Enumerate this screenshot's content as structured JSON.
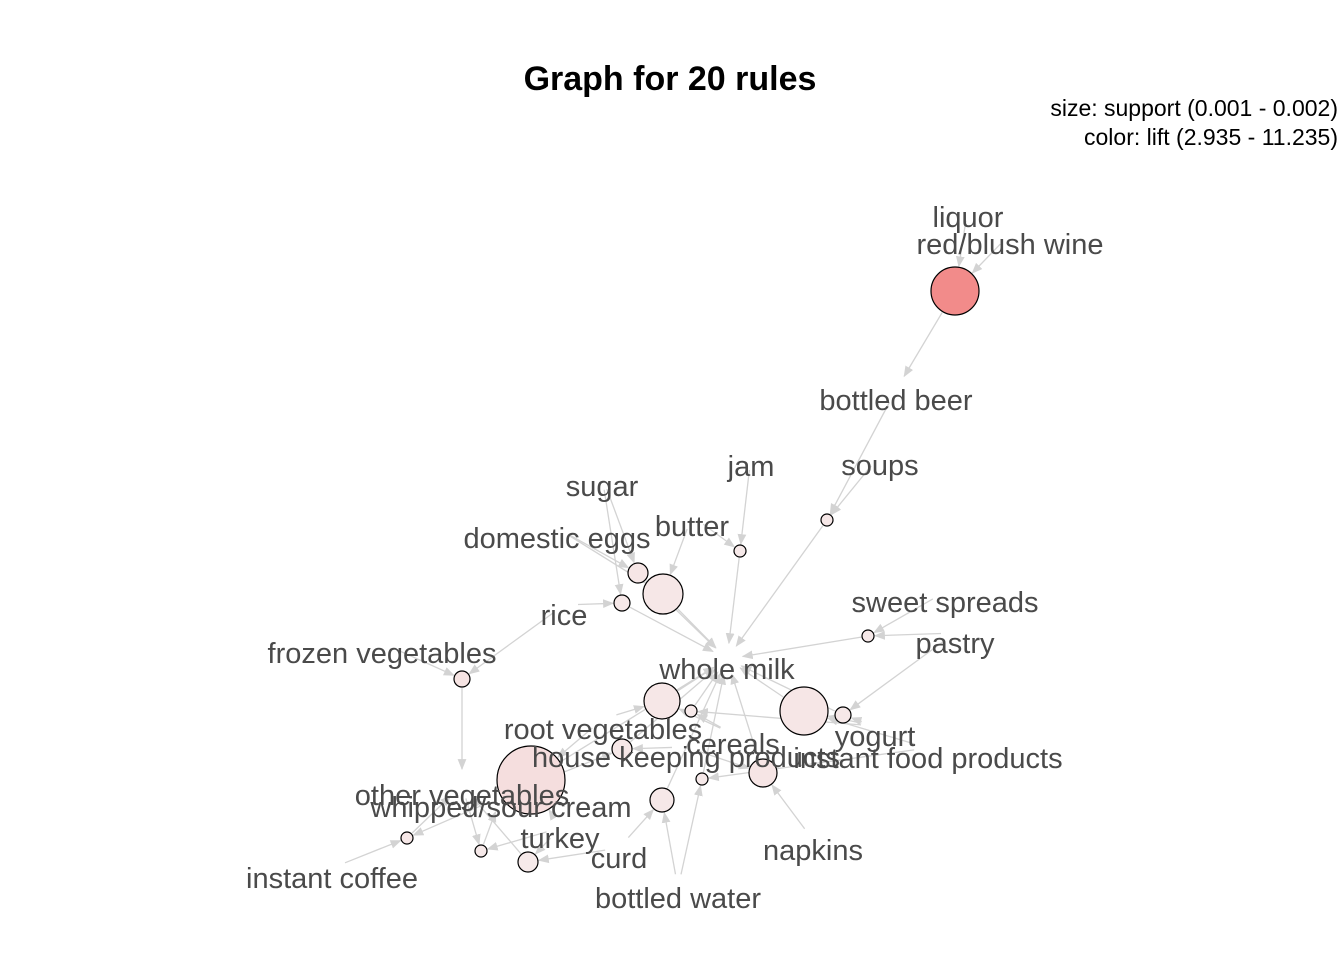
{
  "title": "Graph for 20 rules",
  "legend": {
    "size": "size: support (0.001 - 0.002)",
    "color": "color: lift (2.935 - 11.235)"
  },
  "colors": {
    "edge": "#d3d3d3",
    "high_lift": "#f28b8a",
    "low_lift": "#f6eaea",
    "label": "#4a4a4a"
  },
  "items": [
    {
      "id": "liquor",
      "label": "liquor"
    },
    {
      "id": "red_blush_wine",
      "label": "red/blush wine"
    },
    {
      "id": "bottled_beer",
      "label": "bottled beer"
    },
    {
      "id": "jam",
      "label": "jam"
    },
    {
      "id": "soups",
      "label": "soups"
    },
    {
      "id": "sugar",
      "label": "sugar"
    },
    {
      "id": "butter",
      "label": "butter"
    },
    {
      "id": "domestic_eggs",
      "label": "domestic eggs"
    },
    {
      "id": "sweet_spreads",
      "label": "sweet spreads"
    },
    {
      "id": "rice",
      "label": "rice"
    },
    {
      "id": "pastry",
      "label": "pastry"
    },
    {
      "id": "frozen_vegetables",
      "label": "frozen vegetables"
    },
    {
      "id": "whole_milk",
      "label": "whole milk"
    },
    {
      "id": "root_vegetables",
      "label": "root vegetables"
    },
    {
      "id": "yogurt",
      "label": "yogurt"
    },
    {
      "id": "cereals",
      "label": "cereals"
    },
    {
      "id": "house_keeping_products",
      "label": "house keeping products"
    },
    {
      "id": "instant_food_products",
      "label": "instant food products"
    },
    {
      "id": "other_vegetables",
      "label": "other vegetables"
    },
    {
      "id": "whipped_sour_cream",
      "label": "whipped/sour cream"
    },
    {
      "id": "turkey",
      "label": "turkey"
    },
    {
      "id": "curd",
      "label": "curd"
    },
    {
      "id": "napkins",
      "label": "napkins"
    },
    {
      "id": "instant_coffee",
      "label": "instant coffee"
    },
    {
      "id": "bottled_water",
      "label": "bottled water"
    }
  ],
  "rules": [
    {
      "id": "r1",
      "support": 0.0019,
      "lift": 11.235,
      "lhs": [
        "liquor",
        "red_blush_wine"
      ],
      "rhs": "bottled_beer"
    },
    {
      "id": "r2",
      "support": 0.001,
      "lift": 3.2,
      "lhs": [
        "bottled_beer",
        "soups"
      ],
      "rhs": "whole_milk"
    },
    {
      "id": "r3",
      "support": 0.001,
      "lift": 3.0,
      "lhs": [
        "jam",
        "butter"
      ],
      "rhs": "whole_milk"
    },
    {
      "id": "r4",
      "support": 0.0012,
      "lift": 3.3,
      "lhs": [
        "sugar",
        "domestic_eggs"
      ],
      "rhs": "whole_milk"
    },
    {
      "id": "r5",
      "support": 0.0017,
      "lift": 3.2,
      "lhs": [
        "domestic_eggs",
        "butter"
      ],
      "rhs": "whole_milk"
    },
    {
      "id": "r6",
      "support": 0.0011,
      "lift": 3.1,
      "lhs": [
        "rice",
        "sugar"
      ],
      "rhs": "whole_milk"
    },
    {
      "id": "r7",
      "support": 0.001,
      "lift": 3.0,
      "lhs": [
        "sweet_spreads",
        "pastry"
      ],
      "rhs": "whole_milk"
    },
    {
      "id": "r8",
      "support": 0.0011,
      "lift": 3.5,
      "lhs": [
        "frozen_vegetables",
        "rice"
      ],
      "rhs": "other_vegetables"
    },
    {
      "id": "r9",
      "support": 0.0019,
      "lift": 3.3,
      "lhs": [
        "yogurt",
        "instant_food_products"
      ],
      "rhs": "whole_milk"
    },
    {
      "id": "r10",
      "support": 0.0011,
      "lift": 3.1,
      "lhs": [
        "yogurt",
        "pastry"
      ],
      "rhs": "whole_milk"
    },
    {
      "id": "r11",
      "support": 0.0016,
      "lift": 3.2,
      "lhs": [
        "root_vegetables",
        "cereals"
      ],
      "rhs": "whole_milk"
    },
    {
      "id": "r12",
      "support": 0.001,
      "lift": 3.0,
      "lhs": [
        "cereals",
        "yogurt"
      ],
      "rhs": "whole_milk"
    },
    {
      "id": "r13",
      "support": 0.0012,
      "lift": 3.1,
      "lhs": [
        "house_keeping_products",
        "whipped_sour_cream"
      ],
      "rhs": "whole_milk"
    },
    {
      "id": "r14",
      "support": 0.0014,
      "lift": 3.4,
      "lhs": [
        "napkins",
        "house_keeping_products"
      ],
      "rhs": "whole_milk"
    },
    {
      "id": "r15",
      "support": 0.001,
      "lift": 3.0,
      "lhs": [
        "instant_food_products",
        "bottled_water"
      ],
      "rhs": "whole_milk"
    },
    {
      "id": "r16",
      "support": 0.0024,
      "lift": 4.0,
      "lhs": [
        "root_vegetables",
        "turkey"
      ],
      "rhs": "whole_milk"
    },
    {
      "id": "r17",
      "support": 0.0013,
      "lift": 3.1,
      "lhs": [
        "curd",
        "bottled_water"
      ],
      "rhs": "whole_milk"
    },
    {
      "id": "r18",
      "support": 0.001,
      "lift": 3.2,
      "lhs": [
        "instant_coffee",
        "whipped_sour_cream"
      ],
      "rhs": "other_vegetables"
    },
    {
      "id": "r19",
      "support": 0.001,
      "lift": 3.0,
      "lhs": [
        "other_vegetables",
        "turkey"
      ],
      "rhs": "whipped_sour_cream"
    },
    {
      "id": "r20",
      "support": 0.0012,
      "lift": 2.935,
      "lhs": [
        "turkey",
        "curd"
      ],
      "rhs": "other_vegetables"
    }
  ]
}
